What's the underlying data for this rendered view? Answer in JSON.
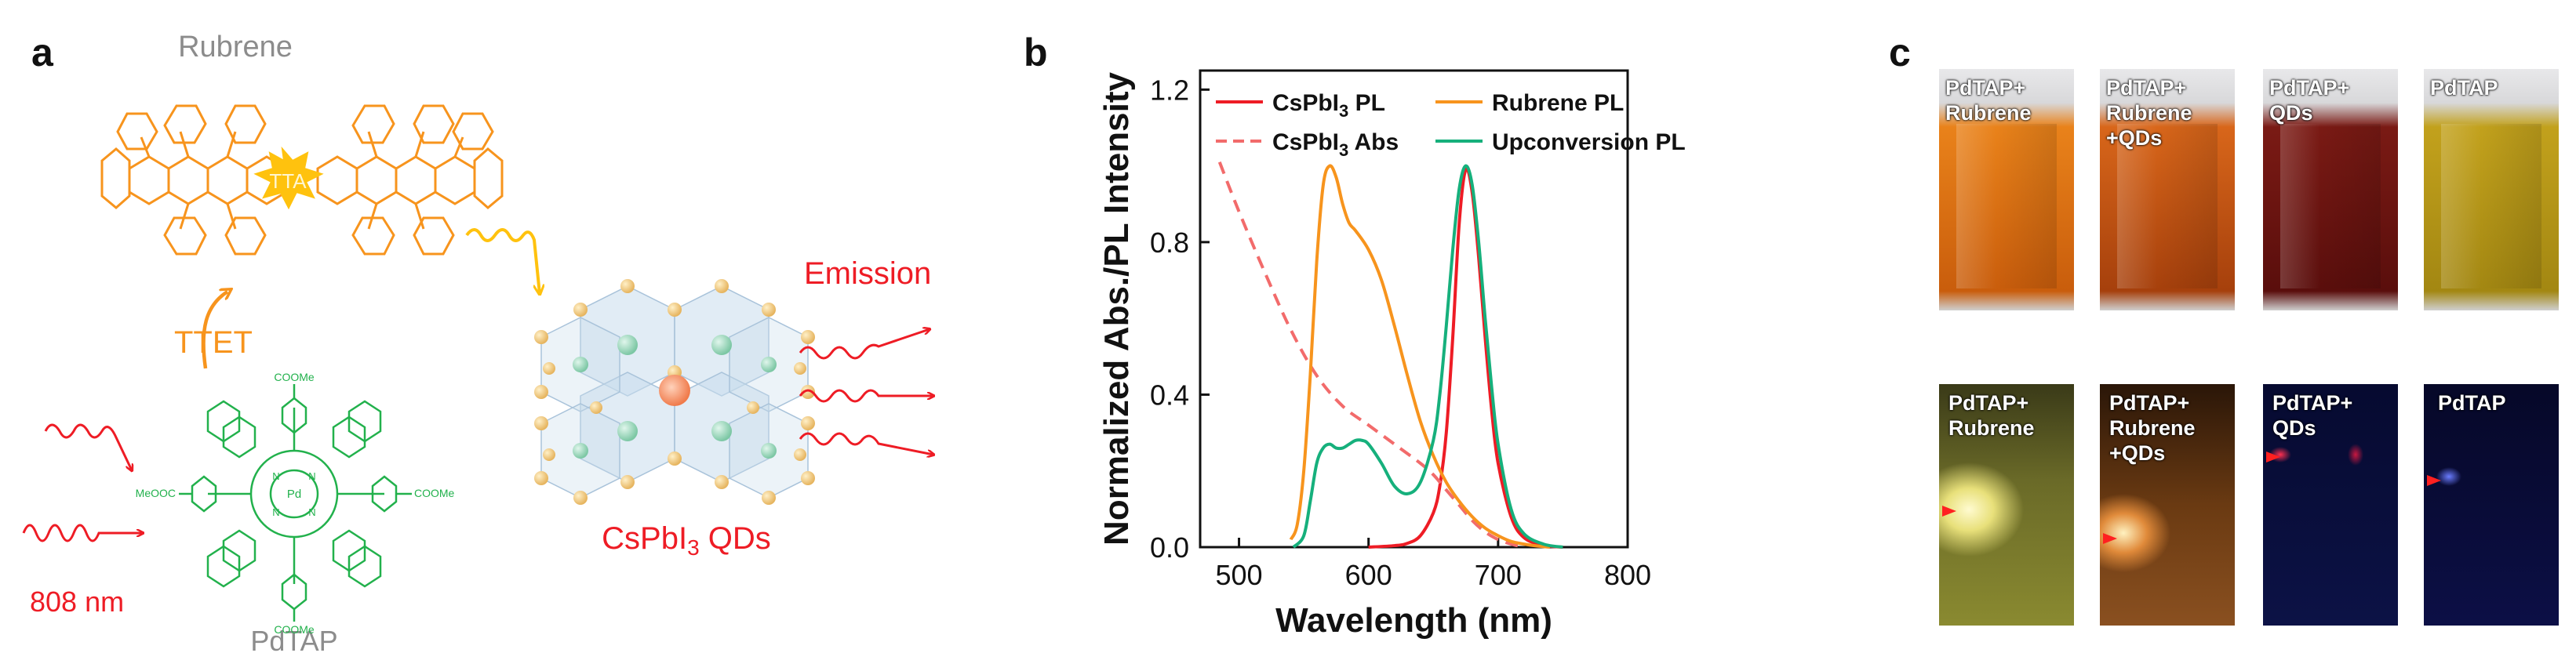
{
  "panel_a": {
    "letter": "a",
    "rubrene_label": "Rubrene",
    "tta_label": "TTA",
    "ttet_label": "TTET",
    "emission_label": "Emission",
    "qd_label_prefix": "CsPbI",
    "qd_label_sub": "3",
    "qd_label_suffix": " QDs",
    "excitation_label": "808 nm",
    "pdtap_label": "PdTAP",
    "cooMe_top": "COOMe",
    "cooMe_right": "COOMe",
    "cooMe_bottom": "COOMe",
    "meooc_left": "MeOOC",
    "atom_pd": "Pd",
    "atom_n": "N",
    "colors": {
      "rubrene": "#f7941d",
      "emission": "#ee1c25",
      "pdtap": "#22b14c",
      "label_gray": "#8c8c8c",
      "tta_star": "#ffc20e"
    }
  },
  "panel_b": {
    "letter": "b",
    "chart_data": {
      "type": "line",
      "title": "",
      "xlabel": "Wavelength (nm)",
      "ylabel": "Normalized Abs./PL Intensity",
      "xlim": [
        470,
        800
      ],
      "ylim": [
        0,
        1.25
      ],
      "xticks": [
        500,
        600,
        700,
        800
      ],
      "yticks": [
        0.0,
        0.4,
        0.8,
        1.2
      ],
      "xtick_labels": [
        "500",
        "600",
        "700",
        "800"
      ],
      "ytick_labels": [
        "0.0",
        "0.4",
        "0.8",
        "1.2"
      ],
      "legend": [
        {
          "name": "CsPbI",
          "sub": "3",
          "suffix": " PL",
          "color": "#ee1c25",
          "dash": "solid"
        },
        {
          "name": "CsPbI",
          "sub": "3",
          "suffix": " Abs",
          "color": "#f26b6b",
          "dash": "dashed"
        },
        {
          "name": "Rubrene PL",
          "sub": "",
          "suffix": "",
          "color": "#f7941d",
          "dash": "solid"
        },
        {
          "name": "Upconversion PL",
          "sub": "",
          "suffix": "",
          "color": "#16b07c",
          "dash": "solid"
        }
      ],
      "series": [
        {
          "name": "CsPbI3 PL",
          "color": "#ee1c25",
          "dash": "solid",
          "x": [
            600,
            620,
            630,
            640,
            650,
            655,
            660,
            665,
            670,
            675,
            680,
            685,
            690,
            695,
            700,
            710,
            720,
            735,
            750
          ],
          "y": [
            0.0,
            0.004,
            0.01,
            0.03,
            0.09,
            0.16,
            0.3,
            0.55,
            0.85,
            0.99,
            0.93,
            0.76,
            0.55,
            0.36,
            0.22,
            0.08,
            0.025,
            0.005,
            0.0
          ]
        },
        {
          "name": "CsPbI3 Abs",
          "color": "#f26b6b",
          "dash": "dashed",
          "x": [
            485,
            500,
            520,
            540,
            560,
            580,
            600,
            620,
            640,
            650,
            660,
            670,
            680,
            690,
            700,
            710,
            720
          ],
          "y": [
            1.01,
            0.88,
            0.72,
            0.57,
            0.45,
            0.37,
            0.32,
            0.27,
            0.22,
            0.19,
            0.15,
            0.11,
            0.07,
            0.04,
            0.02,
            0.008,
            0.0
          ]
        },
        {
          "name": "Rubrene PL",
          "color": "#f7941d",
          "dash": "solid",
          "x": [
            540,
            545,
            550,
            555,
            560,
            565,
            570,
            575,
            580,
            585,
            590,
            600,
            610,
            620,
            630,
            640,
            650,
            660,
            670,
            680,
            690,
            700,
            710,
            720,
            730,
            740
          ],
          "y": [
            0.02,
            0.06,
            0.2,
            0.45,
            0.75,
            0.95,
            1.0,
            0.97,
            0.9,
            0.85,
            0.83,
            0.78,
            0.7,
            0.58,
            0.45,
            0.33,
            0.24,
            0.17,
            0.12,
            0.08,
            0.05,
            0.03,
            0.015,
            0.008,
            0.003,
            0.0
          ]
        },
        {
          "name": "Upconversion PL",
          "color": "#16b07c",
          "dash": "solid",
          "x": [
            542,
            550,
            555,
            560,
            565,
            570,
            575,
            580,
            585,
            590,
            595,
            600,
            610,
            620,
            630,
            640,
            650,
            655,
            660,
            665,
            670,
            675,
            680,
            685,
            690,
            695,
            700,
            710,
            720,
            735,
            750
          ],
          "y": [
            0.0,
            0.03,
            0.12,
            0.22,
            0.26,
            0.27,
            0.26,
            0.26,
            0.27,
            0.28,
            0.28,
            0.27,
            0.22,
            0.16,
            0.14,
            0.17,
            0.28,
            0.4,
            0.58,
            0.78,
            0.94,
            1.0,
            0.95,
            0.8,
            0.6,
            0.42,
            0.27,
            0.1,
            0.035,
            0.008,
            0.0
          ]
        }
      ]
    }
  },
  "panel_c": {
    "letter": "c",
    "top_row": [
      {
        "label": "PdTAP+\nRubrene",
        "body_color": "#e9821a",
        "body_color2": "#c95d0c"
      },
      {
        "label": "PdTAP+\nRubrene\n+QDs",
        "body_color": "#d8661a",
        "body_color2": "#a6400c"
      },
      {
        "label": "PdTAP+\nQDs",
        "body_color": "#7a1a14",
        "body_color2": "#5a0e0c"
      },
      {
        "label": "PdTAP",
        "body_color": "#c2a11c",
        "body_color2": "#a38712"
      }
    ],
    "bottom_row": [
      {
        "label": "PdTAP+\nRubrene",
        "bg": "#2b2a10",
        "glow": "#fffbd0",
        "glow_color": "#e8e07a"
      },
      {
        "label": "PdTAP+\nRubrene\n+QDs",
        "bg": "#2a1608",
        "glow": "#fff2c0",
        "glow_color": "#e08a3a"
      },
      {
        "label": "PdTAP+\nQDs",
        "bg": "#0a0e3a",
        "glow": "",
        "glow_color": "#c81840"
      },
      {
        "label": "PdTAP",
        "bg": "#0a0c3c",
        "glow": "",
        "glow_color": "#4a5cff"
      }
    ]
  }
}
